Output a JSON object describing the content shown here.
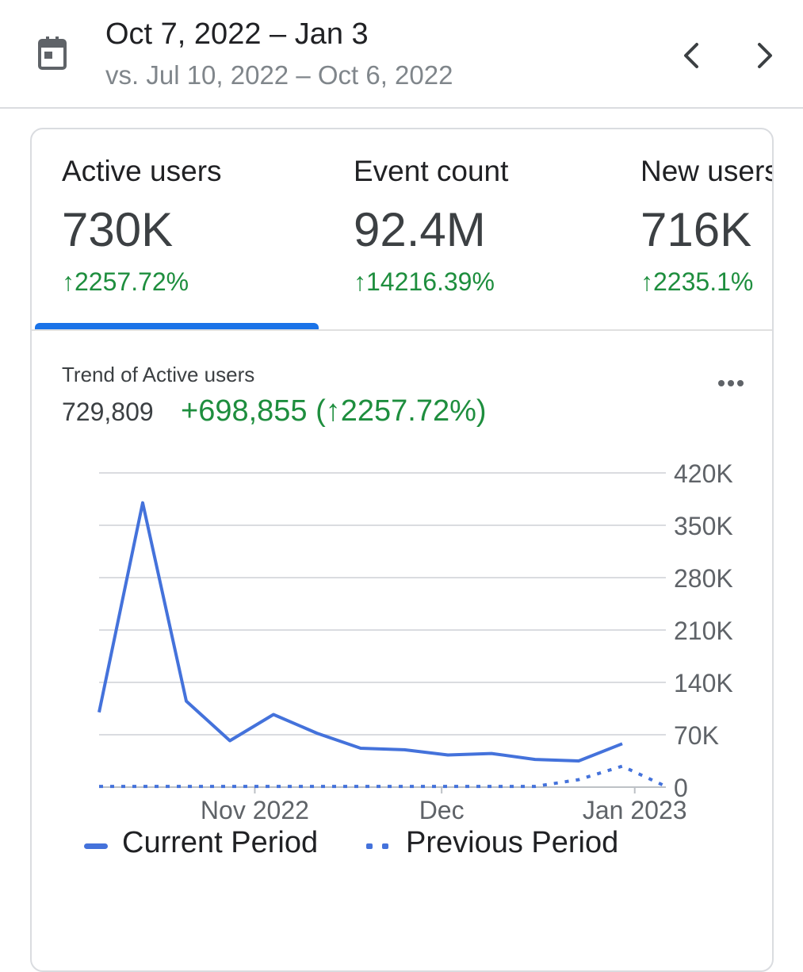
{
  "header": {
    "date_range": "Oct 7, 2022 – Jan 3",
    "compare_range": "vs. Jul 10, 2022 – Oct 6, 2022",
    "icons": {
      "calendar": "calendar-icon",
      "prev": "chevron-left-icon",
      "next": "chevron-right-icon"
    }
  },
  "metrics": [
    {
      "label": "Active users",
      "value": "730K",
      "delta": "↑2257.72%"
    },
    {
      "label": "Event count",
      "value": "92.4M",
      "delta": "↑14216.39%"
    },
    {
      "label": "New users",
      "value": "716K",
      "delta": "↑2235.1%"
    }
  ],
  "trend": {
    "title": "Trend of Active users",
    "value": "729,809",
    "delta": "+698,855 (↑2257.72%)"
  },
  "colors": {
    "accent": "#1a73e8",
    "positive": "#1e8e3e",
    "series": "#4472db"
  },
  "chart_data": {
    "type": "line",
    "y_ticks": [
      "420K",
      "350K",
      "280K",
      "210K",
      "140K",
      "70K",
      "0"
    ],
    "ylim": [
      0,
      420000
    ],
    "x_ticks": [
      {
        "label": "Nov 2022",
        "day": 25
      },
      {
        "label": "Dec",
        "day": 55
      },
      {
        "label": "Jan 2023",
        "day": 86
      }
    ],
    "series": [
      {
        "name": "Current Period",
        "style": "solid",
        "points": [
          [
            0,
            100000
          ],
          [
            7,
            380000
          ],
          [
            14,
            115000
          ],
          [
            21,
            62000
          ],
          [
            28,
            97000
          ],
          [
            35,
            72000
          ],
          [
            42,
            52000
          ],
          [
            49,
            50000
          ],
          [
            56,
            43000
          ],
          [
            63,
            45000
          ],
          [
            70,
            37000
          ],
          [
            77,
            35000
          ],
          [
            84,
            58000
          ]
        ]
      },
      {
        "name": "Previous Period",
        "style": "dotted",
        "points": [
          [
            0,
            1000
          ],
          [
            7,
            1000
          ],
          [
            14,
            1000
          ],
          [
            21,
            1000
          ],
          [
            28,
            1000
          ],
          [
            35,
            1000
          ],
          [
            42,
            1000
          ],
          [
            49,
            1000
          ],
          [
            56,
            1000
          ],
          [
            63,
            1000
          ],
          [
            70,
            1000
          ],
          [
            77,
            10000
          ],
          [
            84,
            28000
          ],
          [
            91,
            1000
          ]
        ]
      }
    ],
    "legend": "bottom-left",
    "grid": true
  }
}
